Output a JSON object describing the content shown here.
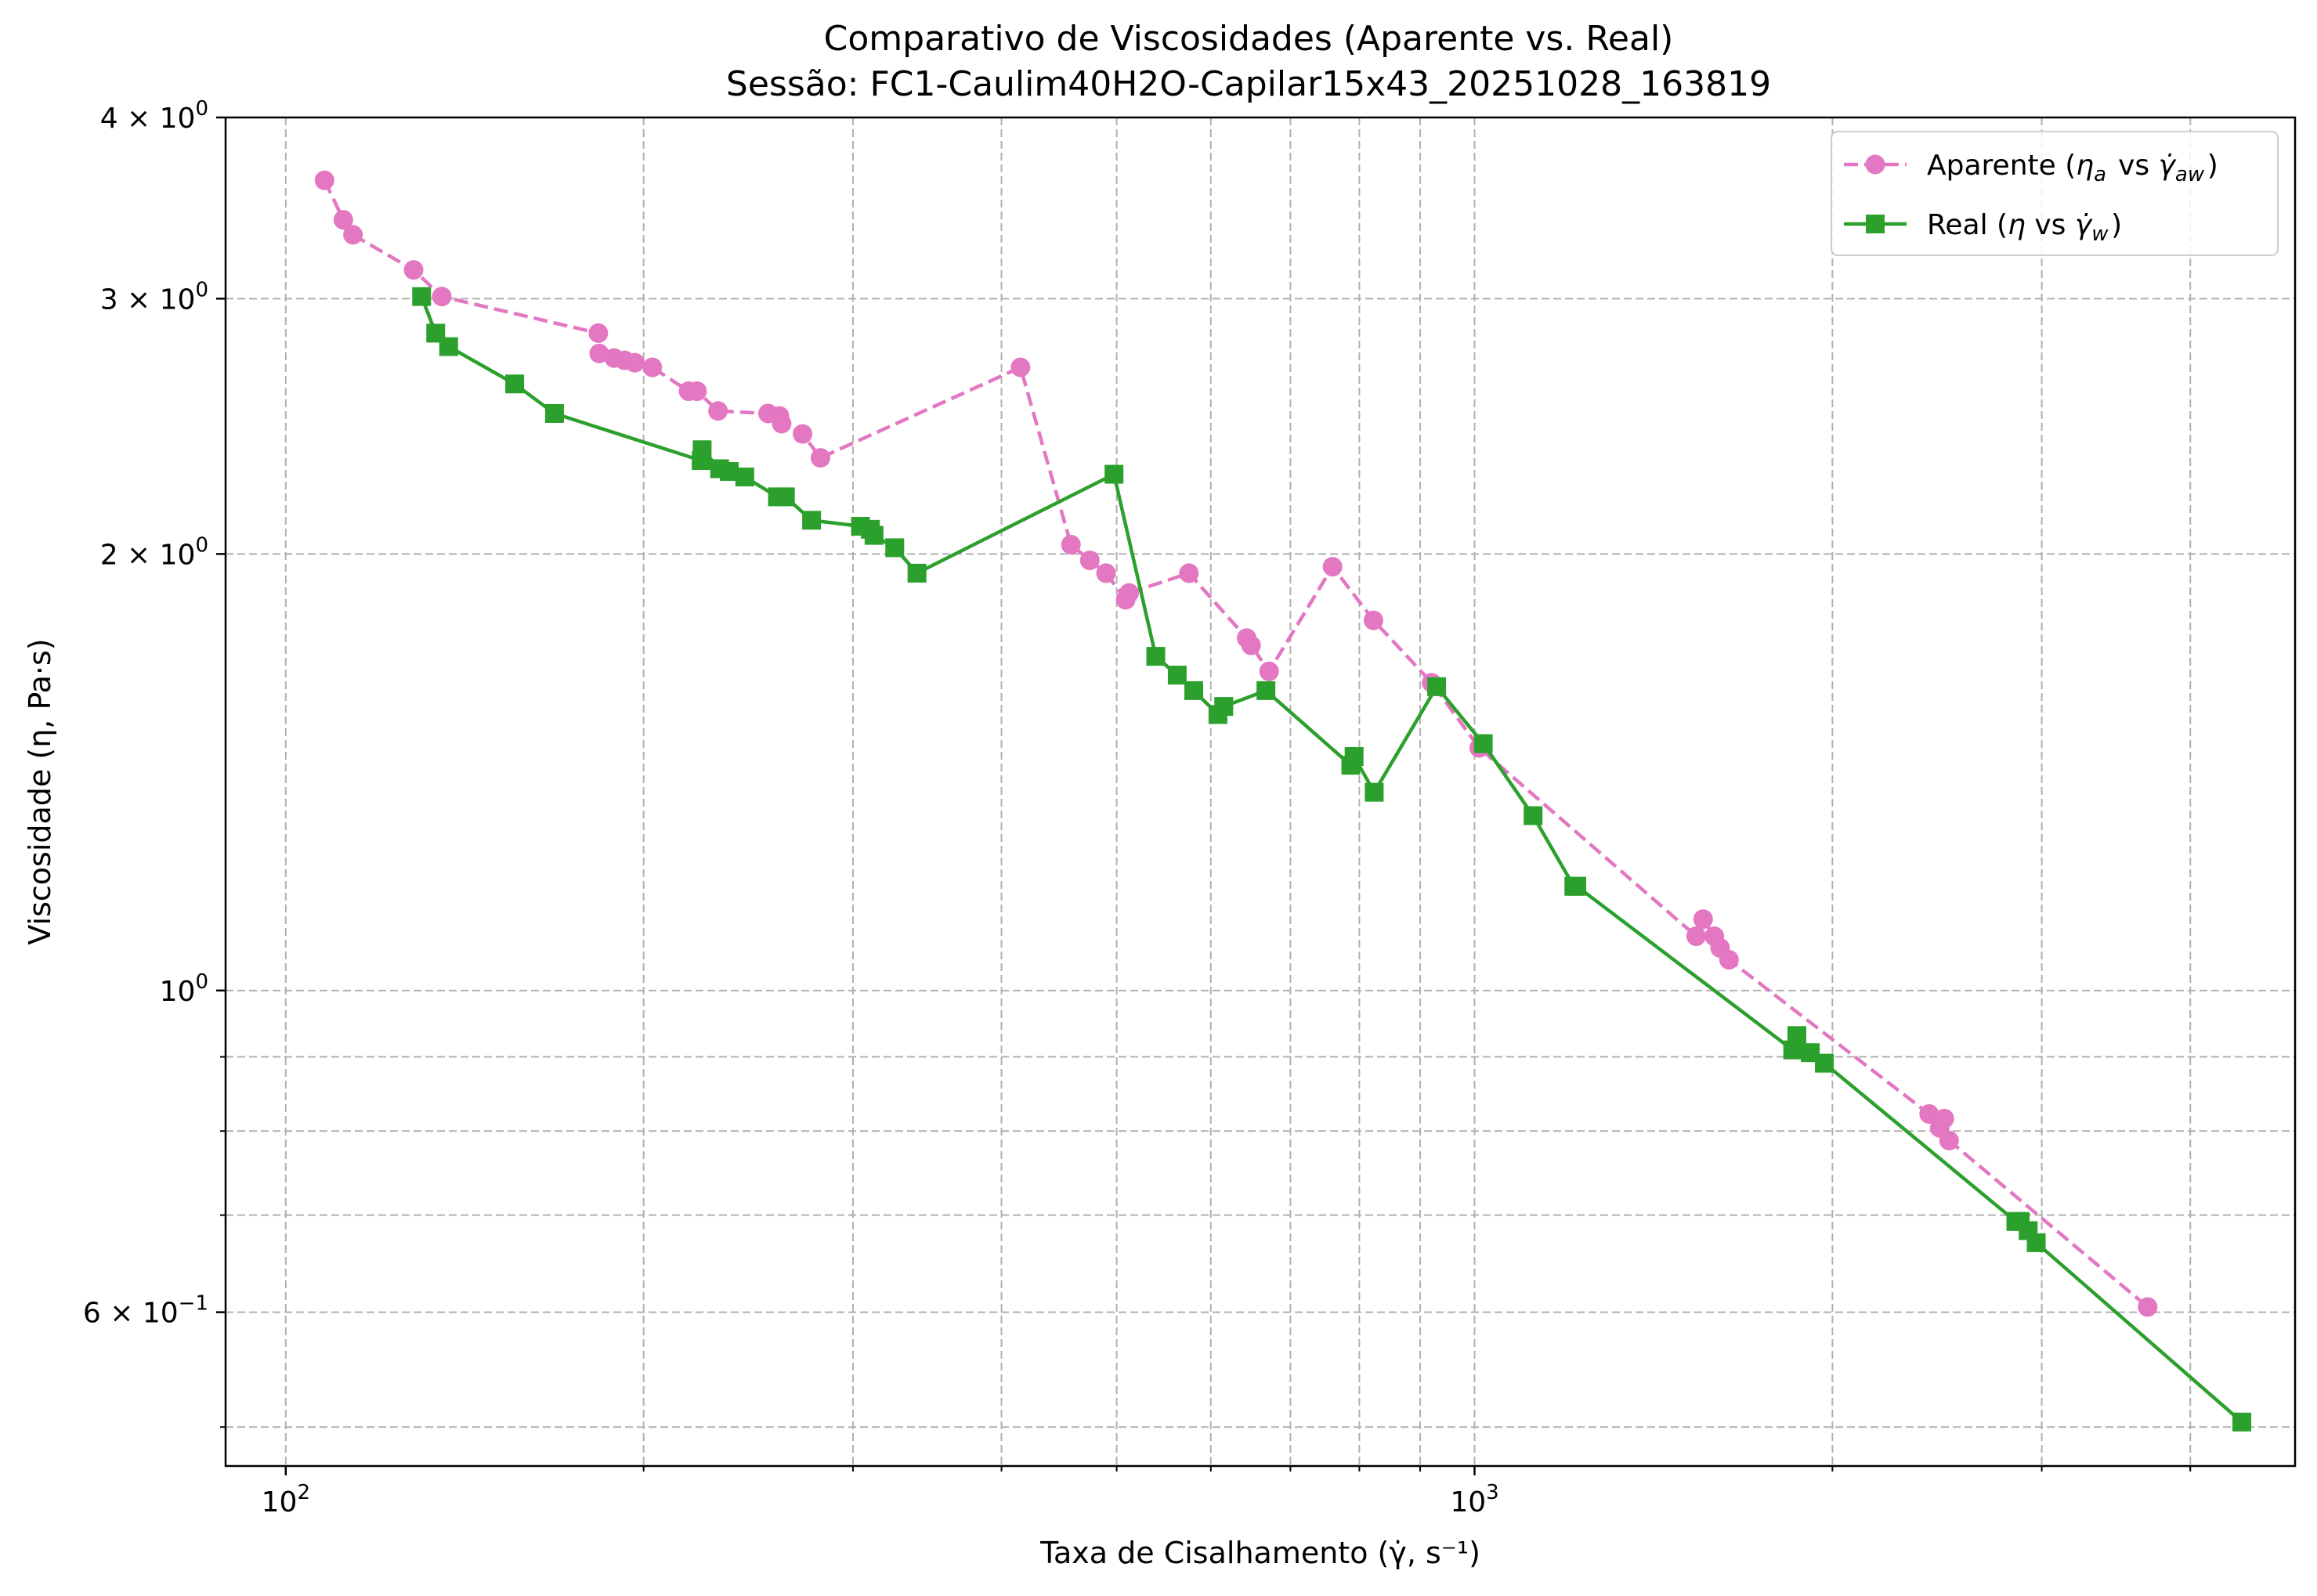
{
  "chart_data": {
    "type": "line",
    "title": "Comparativo de Viscosidades (Aparente vs. Real)",
    "subtitle": "Sessão: FC1-Caulim40H2O-Capilar15x43_20251028_163819",
    "xlabel": "Taxa de Cisalhamento (γ̇, s⁻¹)",
    "ylabel": "Viscosidade (η, Pa·s)",
    "xscale": "log",
    "yscale": "log",
    "xlim": [
      89,
      4900
    ],
    "ylim": [
      0.47,
      4.0
    ],
    "grid": true,
    "legend_position": "top-right",
    "x_ticks": [
      {
        "value": 100,
        "label": "10",
        "sup": "2"
      },
      {
        "value": 1000,
        "label": "10",
        "sup": "3"
      }
    ],
    "y_ticks": [
      {
        "value": 4,
        "label": "4 × 10",
        "sup": "0"
      },
      {
        "value": 3,
        "label": "3 × 10",
        "sup": "0"
      },
      {
        "value": 2,
        "label": "2 × 10",
        "sup": "0"
      },
      {
        "value": 1,
        "label": "10",
        "sup": "0"
      },
      {
        "value": 0.6,
        "label": "6 × 10",
        "sup": "−1"
      }
    ],
    "series": [
      {
        "name": "Aparente (ηa vs γ̇aw)",
        "legend_main": "Aparente (",
        "legend_eta": "η",
        "legend_eta_sub": "a",
        "legend_vs": " vs ",
        "legend_gamma": "γ̇",
        "legend_gamma_sub": "aw",
        "legend_close": ")",
        "color": "#e377c2",
        "line_style": "dashed",
        "marker": "circle",
        "points": [
          [
            107.8,
            3.62
          ],
          [
            111.8,
            3.4
          ],
          [
            113.9,
            3.32
          ],
          [
            128.1,
            3.14
          ],
          [
            135.3,
            3.01
          ],
          [
            183.2,
            2.84
          ],
          [
            183.5,
            2.75
          ],
          [
            188.9,
            2.73
          ],
          [
            192.8,
            2.72
          ],
          [
            196.6,
            2.71
          ],
          [
            203.4,
            2.69
          ],
          [
            218.2,
            2.59
          ],
          [
            221.8,
            2.59
          ],
          [
            231.0,
            2.51
          ],
          [
            254.5,
            2.5
          ],
          [
            260.2,
            2.49
          ],
          [
            261.3,
            2.46
          ],
          [
            272.1,
            2.42
          ],
          [
            281.7,
            2.33
          ],
          [
            415.0,
            2.69
          ],
          [
            457.6,
            2.03
          ],
          [
            474.6,
            1.98
          ],
          [
            489.8,
            1.94
          ],
          [
            508.8,
            1.86
          ],
          [
            512.2,
            1.88
          ],
          [
            575.1,
            1.94
          ],
          [
            643.1,
            1.75
          ],
          [
            648.7,
            1.73
          ],
          [
            671.7,
            1.66
          ],
          [
            759.5,
            1.96
          ],
          [
            822.2,
            1.8
          ],
          [
            920.3,
            1.63
          ],
          [
            1009.0,
            1.47
          ],
          [
            1536.0,
            1.09
          ],
          [
            1557.0,
            1.12
          ],
          [
            1591.0,
            1.09
          ],
          [
            1609.0,
            1.07
          ],
          [
            1637.0,
            1.05
          ],
          [
            2412.0,
            0.822
          ],
          [
            2462.0,
            0.804
          ],
          [
            2484.0,
            0.816
          ],
          [
            2507.0,
            0.788
          ],
          [
            3683.0,
            0.605
          ]
        ]
      },
      {
        "name": "Real (η vs γ̇w)",
        "legend_main": "Real (",
        "legend_eta": "η",
        "legend_eta_sub": "",
        "legend_vs": " vs ",
        "legend_gamma": "γ̇",
        "legend_gamma_sub": "w",
        "legend_close": ")",
        "color": "#2ca02c",
        "line_style": "solid",
        "marker": "square",
        "points": [
          [
            130.1,
            3.01
          ],
          [
            133.7,
            2.84
          ],
          [
            137.1,
            2.78
          ],
          [
            155.8,
            2.62
          ],
          [
            168.3,
            2.5
          ],
          [
            223.6,
            2.32
          ],
          [
            224.0,
            2.36
          ],
          [
            231.7,
            2.29
          ],
          [
            236.1,
            2.28
          ],
          [
            243.3,
            2.26
          ],
          [
            259.2,
            2.19
          ],
          [
            263.2,
            2.19
          ],
          [
            276.9,
            2.11
          ],
          [
            304.4,
            2.09
          ],
          [
            310.3,
            2.08
          ],
          [
            312.5,
            2.06
          ],
          [
            325.3,
            2.02
          ],
          [
            339.6,
            1.94
          ],
          [
            497.4,
            2.27
          ],
          [
            539.3,
            1.7
          ],
          [
            562.2,
            1.65
          ],
          [
            580.5,
            1.61
          ],
          [
            608.3,
            1.55
          ],
          [
            615.2,
            1.57
          ],
          [
            667.6,
            1.61
          ],
          [
            786.9,
            1.43
          ],
          [
            791.9,
            1.45
          ],
          [
            823.4,
            1.37
          ],
          [
            929.2,
            1.62
          ],
          [
            1017.0,
            1.48
          ],
          [
            1120.0,
            1.32
          ],
          [
            1212.0,
            1.18
          ],
          [
            1219.0,
            1.18
          ],
          [
            1852.0,
            0.91
          ],
          [
            1867.0,
            0.931
          ],
          [
            1916.0,
            0.906
          ],
          [
            1969.0,
            0.891
          ],
          [
            2853.0,
            0.693
          ],
          [
            2877.0,
            0.693
          ],
          [
            2922.0,
            0.683
          ],
          [
            2968.0,
            0.67
          ],
          [
            4420.0,
            0.504
          ]
        ]
      }
    ]
  }
}
